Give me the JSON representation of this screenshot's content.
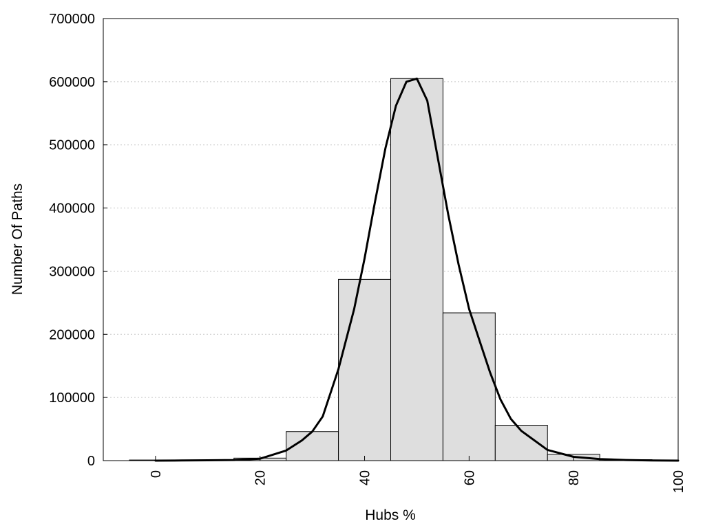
{
  "chart_data": {
    "type": "bar",
    "title": "",
    "xlabel": "Hubs %",
    "ylabel": "Number Of Paths",
    "xlim": [
      -10,
      100
    ],
    "ylim": [
      0,
      700000
    ],
    "x_ticks": [
      "0",
      "20",
      "40",
      "60",
      "80",
      "100"
    ],
    "y_ticks": [
      "0",
      "100000",
      "200000",
      "300000",
      "400000",
      "500000",
      "600000",
      "700000"
    ],
    "grid": "horizontal-dotted",
    "bin_width": 10,
    "bars": [
      {
        "x": 0,
        "value": 1000
      },
      {
        "x": 10,
        "value": 800
      },
      {
        "x": 20,
        "value": 4000
      },
      {
        "x": 30,
        "value": 46000
      },
      {
        "x": 40,
        "value": 287000
      },
      {
        "x": 50,
        "value": 605000
      },
      {
        "x": 60,
        "value": 234000
      },
      {
        "x": 70,
        "value": 56000
      },
      {
        "x": 80,
        "value": 10000
      },
      {
        "x": 90,
        "value": 1500
      }
    ],
    "curve": {
      "x": [
        0,
        5,
        10,
        15,
        20,
        25,
        28,
        30,
        32,
        35,
        38,
        40,
        42,
        44,
        46,
        48,
        50,
        52,
        54,
        56,
        58,
        60,
        62,
        64,
        66,
        68,
        70,
        75,
        80,
        85,
        90,
        95,
        100
      ],
      "y": [
        0,
        200,
        500,
        1000,
        3000,
        16000,
        32000,
        46000,
        70000,
        145000,
        240000,
        320000,
        410000,
        495000,
        562000,
        600000,
        605000,
        570000,
        480000,
        390000,
        310000,
        240000,
        190000,
        140000,
        97000,
        66000,
        47000,
        17000,
        6000,
        2500,
        1000,
        300,
        0
      ]
    },
    "colors": {
      "bar_fill": "#dedede",
      "bar_stroke": "#000000",
      "curve": "#000000",
      "grid": "#c8c8c8"
    }
  }
}
